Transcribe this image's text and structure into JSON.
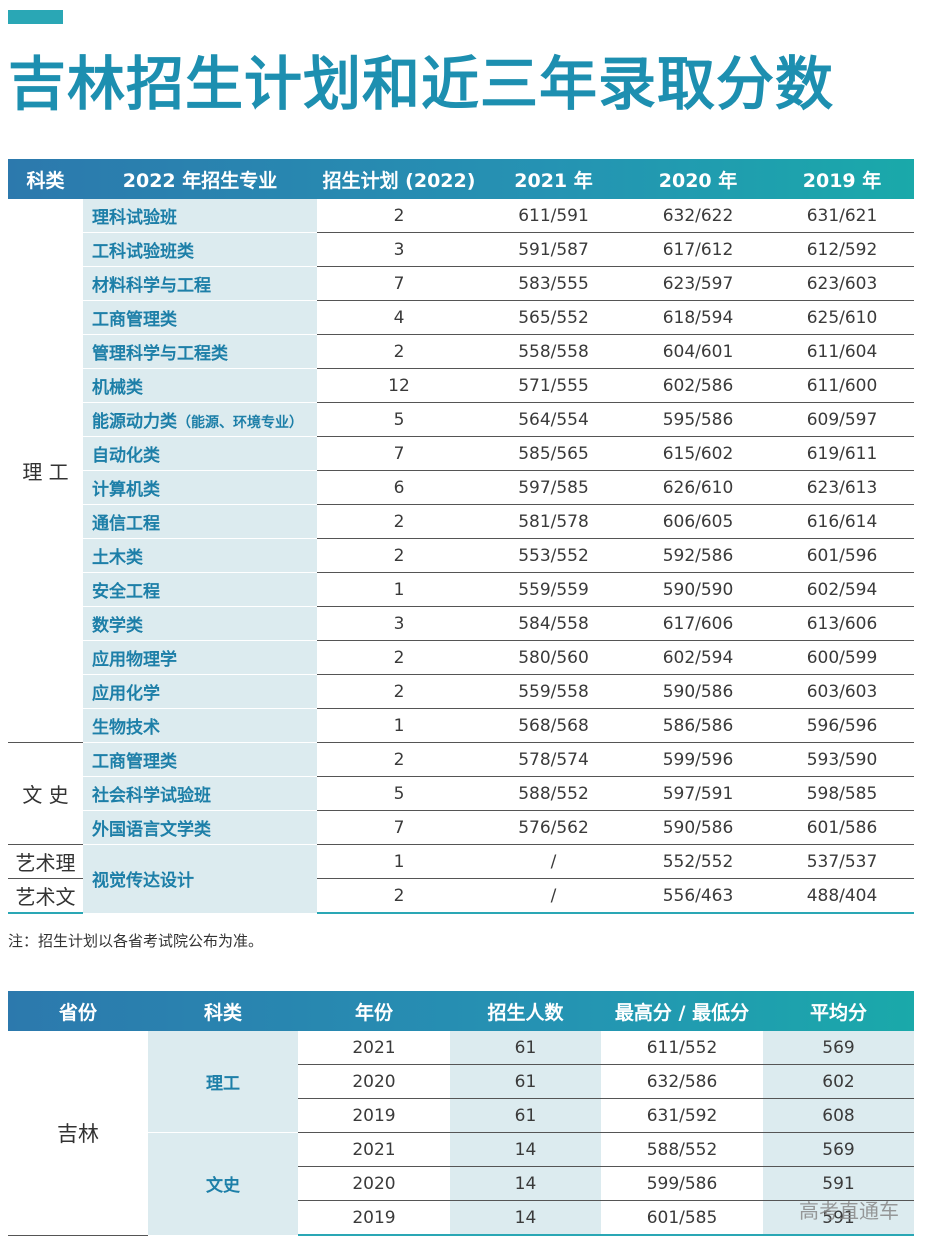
{
  "title": "吉林招生计划和近三年录取分数",
  "table1": {
    "headers": [
      "科类",
      "2022 年招生专业",
      "招生计划 (2022)",
      "2021 年",
      "2020 年",
      "2019 年"
    ],
    "category_li": "理 工",
    "category_wen": "文 史",
    "category_yili": "艺术理",
    "category_yiwen": "艺术文",
    "rows": [
      {
        "major": "理科试验班",
        "note": "",
        "plan": "2",
        "y2021": "611/591",
        "y2020": "632/622",
        "y2019": "631/621"
      },
      {
        "major": "工科试验班类",
        "note": "",
        "plan": "3",
        "y2021": "591/587",
        "y2020": "617/612",
        "y2019": "612/592"
      },
      {
        "major": "材料科学与工程",
        "note": "",
        "plan": "7",
        "y2021": "583/555",
        "y2020": "623/597",
        "y2019": "623/603"
      },
      {
        "major": "工商管理类",
        "note": "",
        "plan": "4",
        "y2021": "565/552",
        "y2020": "618/594",
        "y2019": "625/610"
      },
      {
        "major": "管理科学与工程类",
        "note": "",
        "plan": "2",
        "y2021": "558/558",
        "y2020": "604/601",
        "y2019": "611/604"
      },
      {
        "major": "机械类",
        "note": "",
        "plan": "12",
        "y2021": "571/555",
        "y2020": "602/586",
        "y2019": "611/600"
      },
      {
        "major": "能源动力类",
        "note": "（能源、环境专业）",
        "plan": "5",
        "y2021": "564/554",
        "y2020": "595/586",
        "y2019": "609/597"
      },
      {
        "major": "自动化类",
        "note": "",
        "plan": "7",
        "y2021": "585/565",
        "y2020": "615/602",
        "y2019": "619/611"
      },
      {
        "major": "计算机类",
        "note": "",
        "plan": "6",
        "y2021": "597/585",
        "y2020": "626/610",
        "y2019": "623/613"
      },
      {
        "major": "通信工程",
        "note": "",
        "plan": "2",
        "y2021": "581/578",
        "y2020": "606/605",
        "y2019": "616/614"
      },
      {
        "major": "土木类",
        "note": "",
        "plan": "2",
        "y2021": "553/552",
        "y2020": "592/586",
        "y2019": "601/596"
      },
      {
        "major": "安全工程",
        "note": "",
        "plan": "1",
        "y2021": "559/559",
        "y2020": "590/590",
        "y2019": "602/594"
      },
      {
        "major": "数学类",
        "note": "",
        "plan": "3",
        "y2021": "584/558",
        "y2020": "617/606",
        "y2019": "613/606"
      },
      {
        "major": "应用物理学",
        "note": "",
        "plan": "2",
        "y2021": "580/560",
        "y2020": "602/594",
        "y2019": "600/599"
      },
      {
        "major": "应用化学",
        "note": "",
        "plan": "2",
        "y2021": "559/558",
        "y2020": "590/586",
        "y2019": "603/603"
      },
      {
        "major": "生物技术",
        "note": "",
        "plan": "1",
        "y2021": "568/568",
        "y2020": "586/586",
        "y2019": "596/596"
      },
      {
        "major": "工商管理类",
        "note": "",
        "plan": "2",
        "y2021": "578/574",
        "y2020": "599/596",
        "y2019": "593/590"
      },
      {
        "major": "社会科学试验班",
        "note": "",
        "plan": "5",
        "y2021": "588/552",
        "y2020": "597/591",
        "y2019": "598/585"
      },
      {
        "major": "外国语言文学类",
        "note": "",
        "plan": "7",
        "y2021": "576/562",
        "y2020": "590/586",
        "y2019": "601/586"
      },
      {
        "major": "视觉传达设计",
        "note": "",
        "plan": "1",
        "y2021": "/",
        "y2020": "552/552",
        "y2019": "537/537"
      },
      {
        "major": "",
        "note": "",
        "plan": "2",
        "y2021": "/",
        "y2020": "556/463",
        "y2019": "488/404"
      }
    ]
  },
  "note": "注：招生计划以各省考试院公布为准。",
  "table2": {
    "headers": [
      "省份",
      "科类",
      "年份",
      "招生人数",
      "最高分 / 最低分",
      "平均分"
    ],
    "province": "吉林",
    "category_li": "理工",
    "category_wen": "文史",
    "rows": [
      {
        "year": "2021",
        "count": "61",
        "range": "611/552",
        "avg": "569"
      },
      {
        "year": "2020",
        "count": "61",
        "range": "632/586",
        "avg": "602"
      },
      {
        "year": "2019",
        "count": "61",
        "range": "631/592",
        "avg": "608"
      },
      {
        "year": "2021",
        "count": "14",
        "range": "588/552",
        "avg": "569"
      },
      {
        "year": "2020",
        "count": "14",
        "range": "599/586",
        "avg": "591"
      },
      {
        "year": "2019",
        "count": "14",
        "range": "601/585",
        "avg": "591"
      }
    ]
  },
  "watermark": "高考直通车"
}
